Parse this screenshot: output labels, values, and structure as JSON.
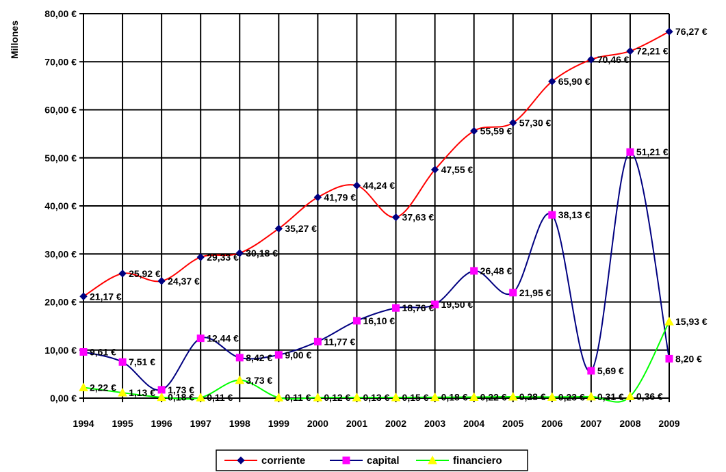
{
  "chart_data": {
    "type": "line",
    "title": "",
    "xlabel": "",
    "ylabel": "Millones",
    "ylim": [
      0,
      80
    ],
    "grid": true,
    "legend_position": "bottom",
    "categories": [
      "1994",
      "1995",
      "1996",
      "1997",
      "1998",
      "1999",
      "2000",
      "2001",
      "2002",
      "2003",
      "2004",
      "2005",
      "2006",
      "2007",
      "2008",
      "2009"
    ],
    "y_ticks": [
      "0,00 €",
      "10,00 €",
      "20,00 €",
      "30,00 €",
      "40,00 €",
      "50,00 €",
      "60,00 €",
      "70,00 €",
      "80,00 €"
    ],
    "series": [
      {
        "name": "corriente",
        "color": "#ff0000",
        "marker_color": "#000080",
        "marker": "diamond",
        "values": [
          21.17,
          25.92,
          24.37,
          29.33,
          30.18,
          35.27,
          41.79,
          44.24,
          37.63,
          47.55,
          55.59,
          57.3,
          65.9,
          70.46,
          72.21,
          76.27
        ],
        "labels": [
          "21,17 €",
          "25,92 €",
          "24,37 €",
          "29,33 €",
          "30,18 €",
          "35,27 €",
          "41,79 €",
          "44,24 €",
          "37,63 €",
          "47,55 €",
          "55,59 €",
          "57,30 €",
          "65,90 €",
          "70,46 €",
          "72,21 €",
          "76,27 €"
        ]
      },
      {
        "name": "capital",
        "color": "#000080",
        "marker_color": "#ff00ff",
        "marker": "square",
        "values": [
          9.61,
          7.51,
          1.73,
          12.44,
          8.42,
          9.0,
          11.77,
          16.1,
          18.76,
          19.5,
          26.48,
          21.95,
          38.13,
          5.69,
          51.21,
          8.2
        ],
        "labels": [
          "9,61 €",
          "7,51 €",
          "1,73 €",
          "12,44 €",
          "8,42 €",
          "9,00 €",
          "11,77 €",
          "16,10 €",
          "18,76 €",
          "19,50 €",
          "26,48 €",
          "21,95 €",
          "38,13 €",
          "5,69 €",
          "51,21 €",
          "8,20 €"
        ]
      },
      {
        "name": "financiero",
        "color": "#00ff00",
        "marker_color": "#ffff00",
        "marker": "triangle",
        "values": [
          2.22,
          1.13,
          0.18,
          0.11,
          3.73,
          0.11,
          0.12,
          0.13,
          0.15,
          0.18,
          0.22,
          0.28,
          0.23,
          0.31,
          0.36,
          15.93
        ],
        "labels": [
          "2,22 €",
          "1,13 €",
          "0,18 €",
          "0,11 €",
          "3,73 €",
          "0,11 €",
          "0,12 €",
          "0,13 €",
          "0,15 €",
          "0,18 €",
          "0,22 €",
          "0,28 €",
          "0,23 €",
          "0,31 €",
          "0,36 €",
          "15,93 €"
        ]
      }
    ]
  }
}
